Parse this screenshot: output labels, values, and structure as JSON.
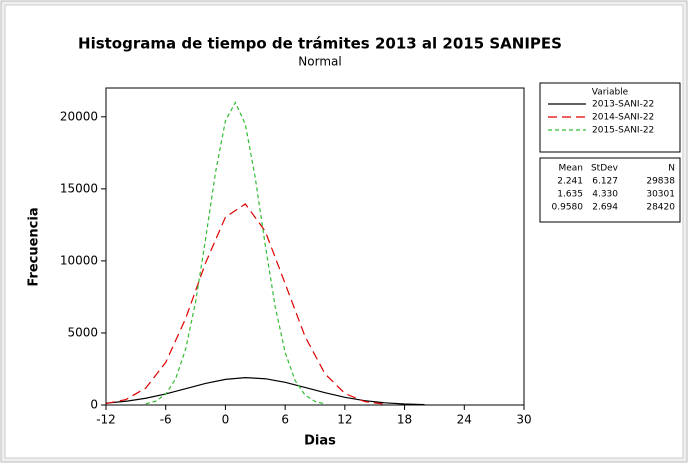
{
  "chart_data": {
    "type": "line",
    "title": "Histograma de tiempo de trámites 2013 al 2015 SANIPES",
    "subtitle": "Normal",
    "x_label": "Dias",
    "y_label": "Frecuencia",
    "xlim": [
      -12,
      30
    ],
    "xticks": [
      -12,
      -6,
      0,
      6,
      12,
      18,
      24,
      30
    ],
    "ylim": [
      0,
      22000
    ],
    "yticks": [
      0,
      5000,
      10000,
      15000,
      20000
    ],
    "legend_title": "Variable",
    "series": [
      {
        "name": "2013-SANI-22",
        "color": "#000000",
        "dash": "none",
        "x": [
          -12,
          -10,
          -8,
          -6,
          -4,
          -2,
          0,
          2,
          4,
          6,
          8,
          10,
          12,
          14,
          16,
          18,
          20
        ],
        "values": [
          127,
          258,
          470,
          769,
          1132,
          1496,
          1777,
          1899,
          1824,
          1575,
          1221,
          852,
          534,
          301,
          153,
          70,
          28
        ]
      },
      {
        "name": "2014-SANI-22",
        "color": "#e00000",
        "dash": "9 5",
        "x": [
          -12,
          -10,
          -8,
          -6,
          -4,
          -2,
          0,
          2,
          4,
          6,
          8,
          10,
          12,
          14,
          16
        ],
        "values": [
          98,
          378,
          1179,
          2956,
          6000,
          9850,
          13040,
          13950,
          12060,
          8425,
          4755,
          2167,
          798,
          237,
          57
        ]
      },
      {
        "name": "2015-SANI-22",
        "color": "#33bb33",
        "dash": "4 3",
        "x": [
          -8,
          -7,
          -6,
          -5,
          -4,
          -3,
          -2,
          -1,
          0,
          1,
          2,
          3,
          4,
          5,
          6,
          7,
          8,
          9,
          10
        ],
        "values": [
          84,
          268,
          750,
          1821,
          3864,
          7140,
          11490,
          16130,
          19720,
          21000,
          19490,
          15760,
          11110,
          6820,
          3650,
          1700,
          690,
          245,
          75
        ]
      }
    ],
    "stats": {
      "columns": [
        "Mean",
        "StDev",
        "N"
      ],
      "rows": [
        [
          "2.241",
          "6.127",
          "29838"
        ],
        [
          "1.635",
          "4.330",
          "30301"
        ],
        [
          "0.9580",
          "2.694",
          "28420"
        ]
      ]
    }
  }
}
